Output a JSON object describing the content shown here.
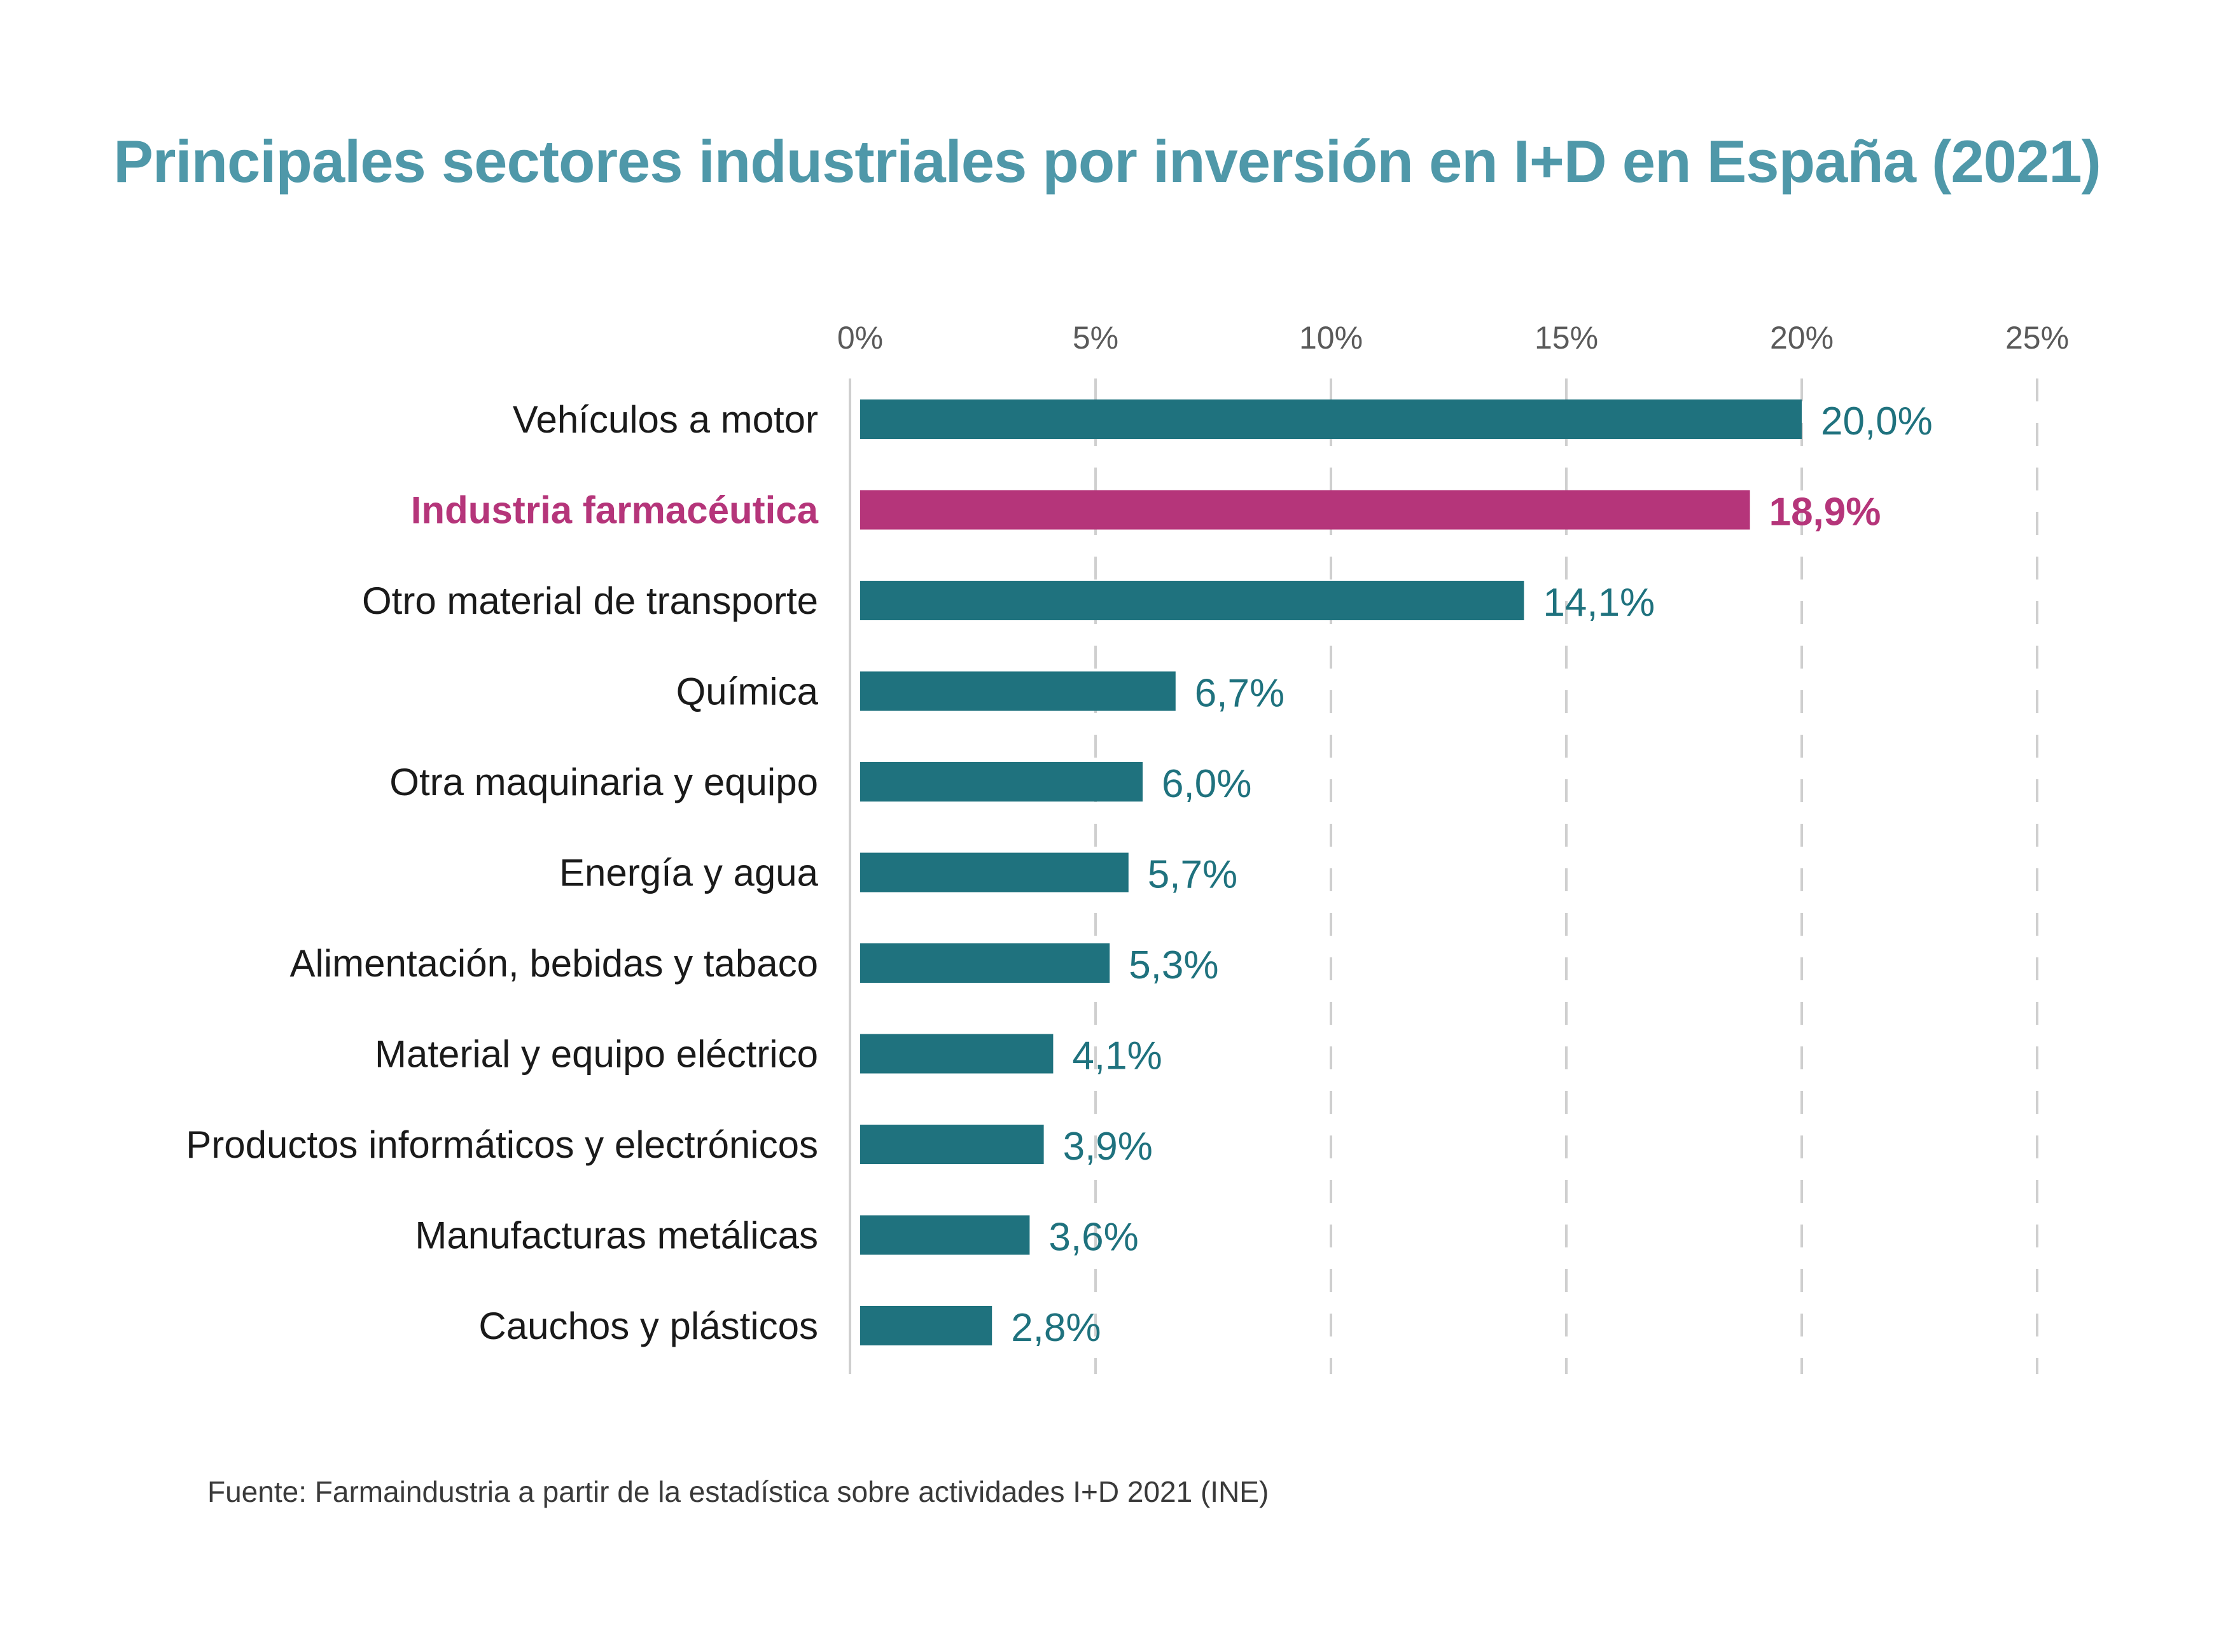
{
  "chart_data": {
    "type": "bar",
    "orientation": "horizontal",
    "title": "Principales sectores industriales por inversión en I+D en España (2021)",
    "xlabel": "",
    "ylabel": "",
    "xlim": [
      0,
      25
    ],
    "x_ticks": [
      0,
      5,
      10,
      15,
      20,
      25
    ],
    "x_tick_labels": [
      "0%",
      "5%",
      "10%",
      "15%",
      "20%",
      "25%"
    ],
    "x_axis_position": "top",
    "grid": "vertical dashed",
    "categories": [
      "Vehículos a motor",
      "Industria farmacéutica",
      "Otro material de transporte",
      "Química",
      "Otra maquinaria y equipo",
      "Energía y agua",
      "Alimentación, bebidas y tabaco",
      "Material y equipo eléctrico",
      "Productos informáticos y electrónicos",
      "Manufacturas metálicas",
      "Cauchos y plásticos"
    ],
    "values": [
      20.0,
      18.9,
      14.1,
      6.7,
      6.0,
      5.7,
      5.3,
      4.1,
      3.9,
      3.6,
      2.8
    ],
    "value_labels": [
      "20,0%",
      "18,9%",
      "14,1%",
      "6,7%",
      "6,0%",
      "5,7%",
      "5,3%",
      "4,1%",
      "3,9%",
      "3,6%",
      "2,8%"
    ],
    "highlight_index": 1,
    "colors": {
      "bar": "#1f727e",
      "highlight": "#b5357a",
      "title": "#4f98a9",
      "axis_labels": "#5a5a5a",
      "category_labels": "#1a1a1a",
      "grid": "#cfcfcf",
      "source": "#3a3a3a"
    }
  },
  "source": "Fuente: Farmaindustria a partir de la estadística sobre actividades I+D 2021 (INE)"
}
